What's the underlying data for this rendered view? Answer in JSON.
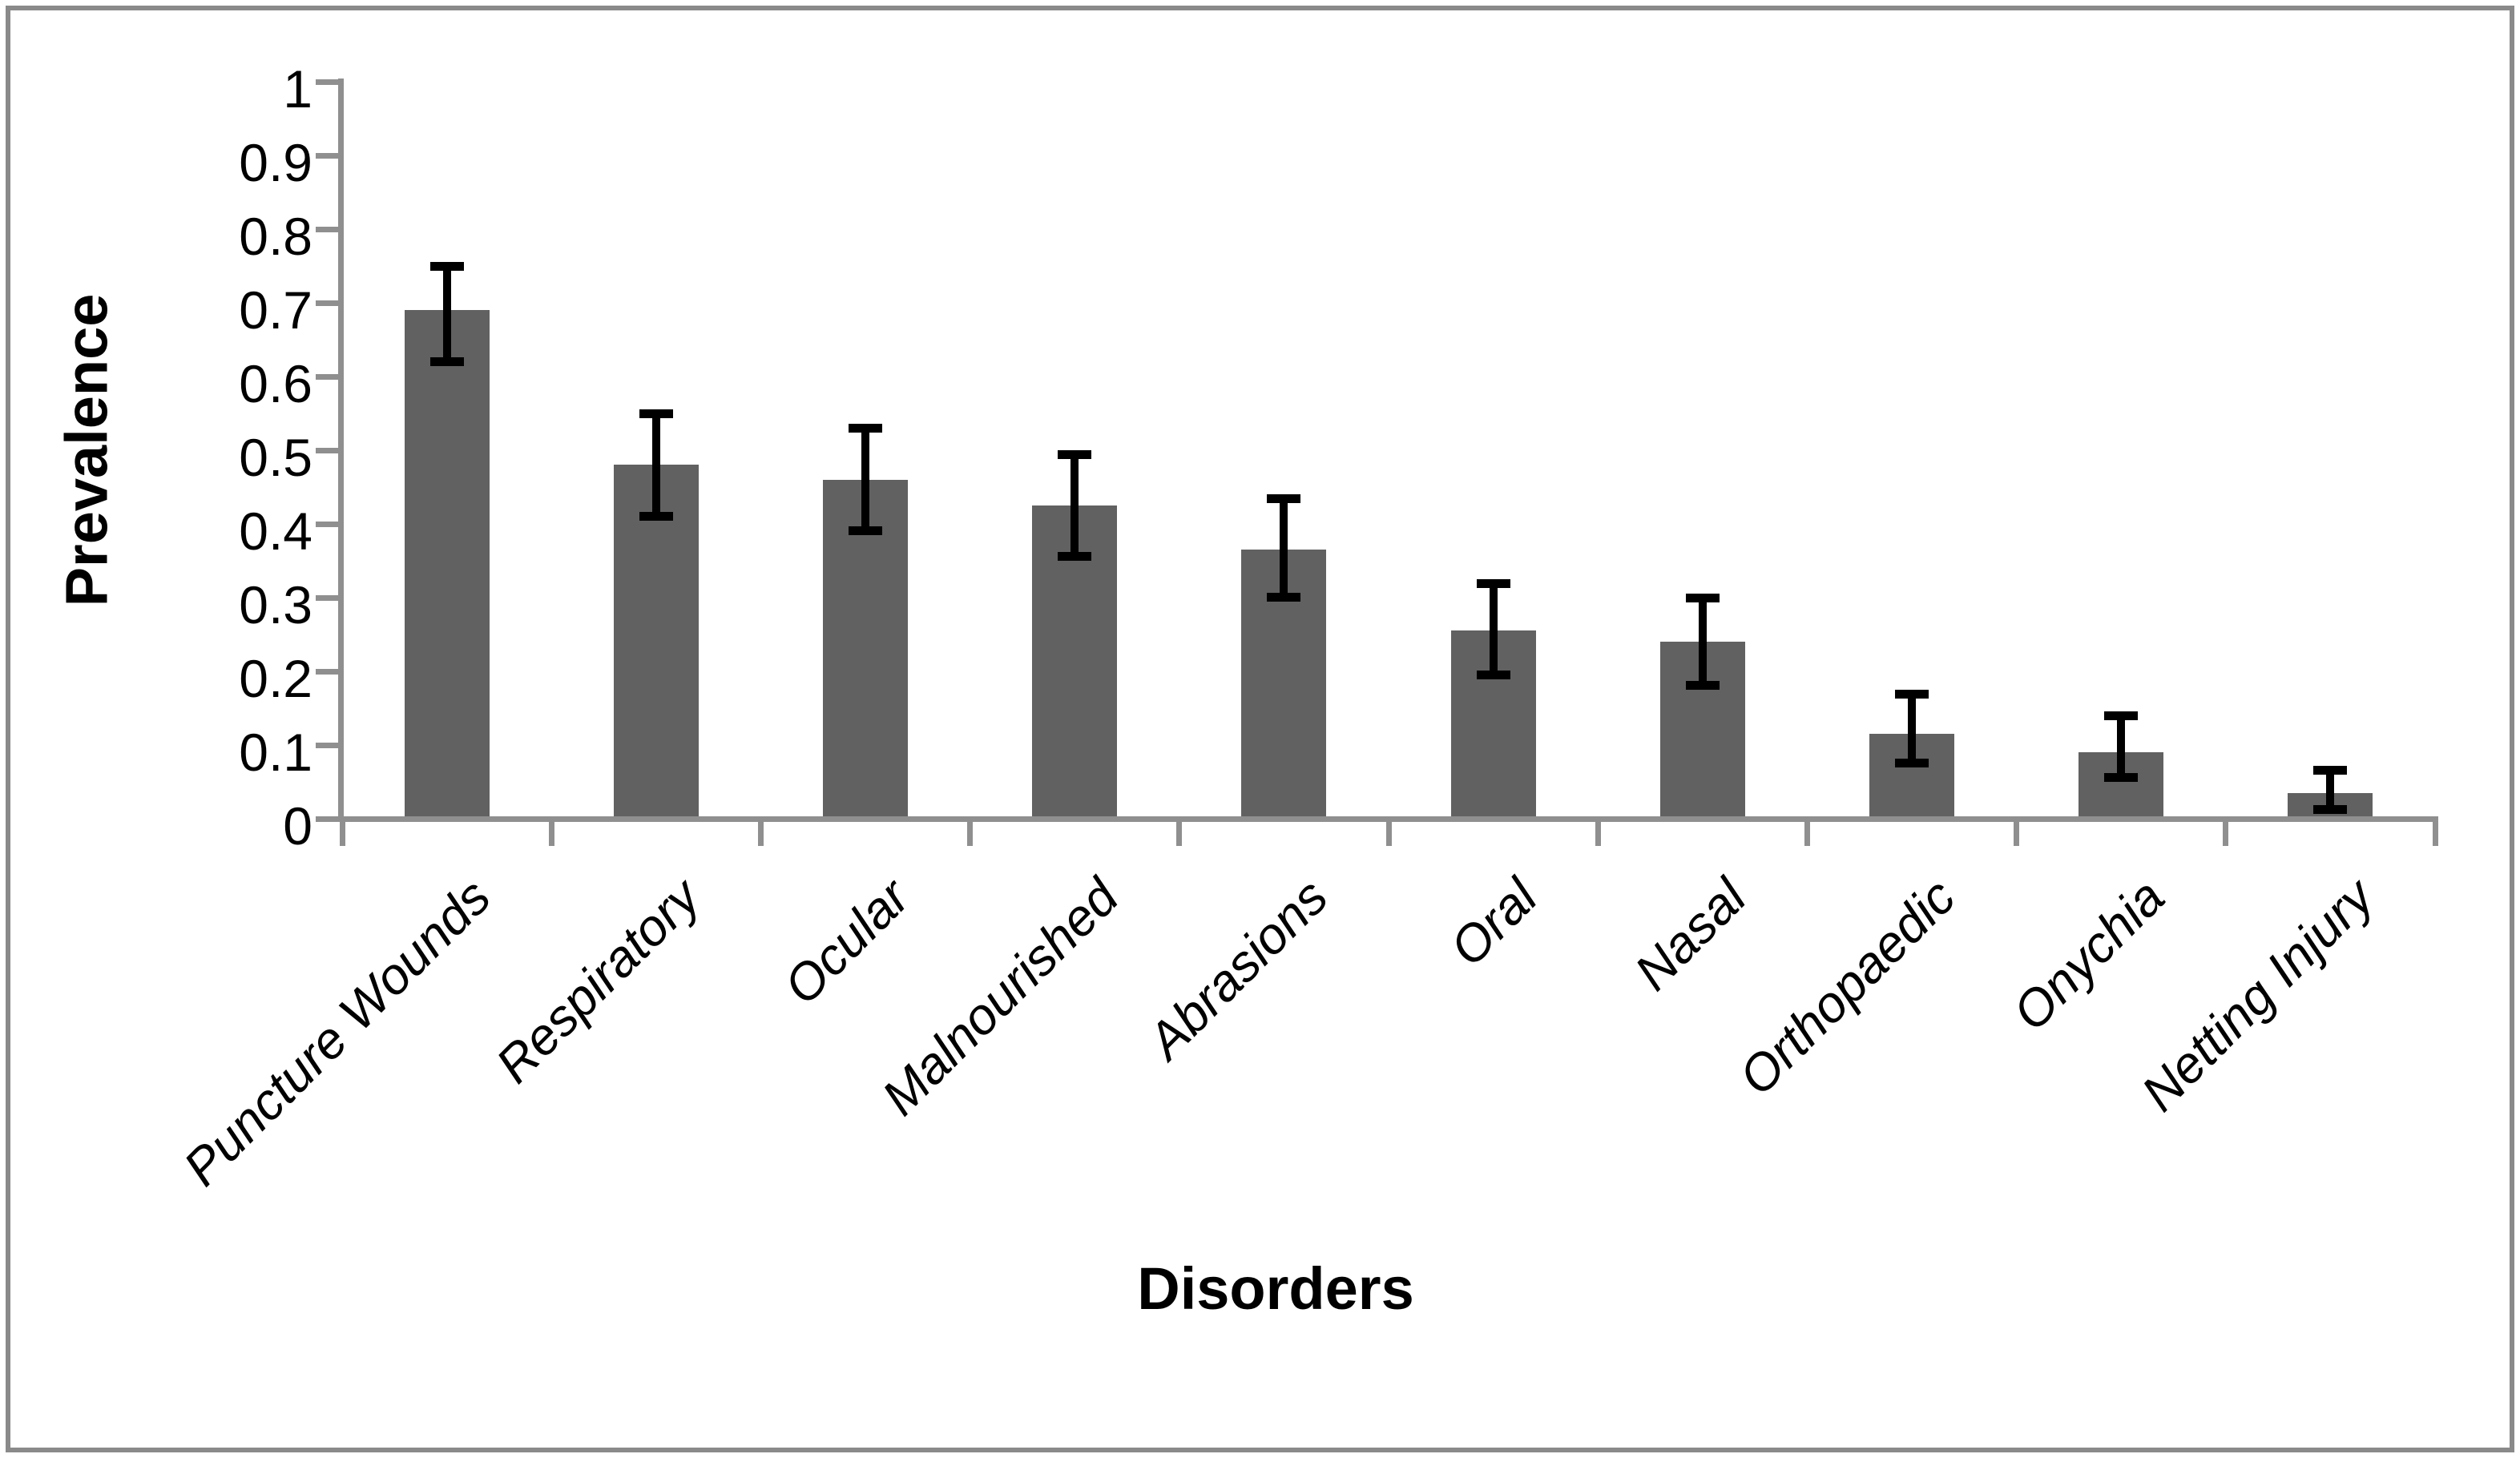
{
  "page": {
    "background": "#ffffff",
    "frame_border_color": "#8a8a8a"
  },
  "chart_data": {
    "type": "bar",
    "title": "",
    "xlabel": "Disorders",
    "ylabel": "Prevalence",
    "categories": [
      "Puncture Wounds",
      "Respiratory",
      "Ocular",
      "Malnourished",
      "Abrasions",
      "Oral",
      "Nasal",
      "Orthopaedic",
      "Onychia",
      "Netting Injury"
    ],
    "values": [
      0.69,
      0.48,
      0.46,
      0.425,
      0.365,
      0.255,
      0.24,
      0.115,
      0.09,
      0.035
    ],
    "error_low": [
      0.62,
      0.41,
      0.39,
      0.355,
      0.3,
      0.195,
      0.18,
      0.075,
      0.055,
      0.012
    ],
    "error_high": [
      0.75,
      0.55,
      0.53,
      0.495,
      0.435,
      0.32,
      0.3,
      0.17,
      0.14,
      0.066
    ],
    "y_tick_labels": [
      "1",
      "0.9",
      "0.8",
      "0.7",
      "0.6",
      "0.5",
      "0.4",
      "0.3",
      "0.2",
      "0.1",
      "0"
    ],
    "y_tick_values": [
      1.0,
      0.9,
      0.8,
      0.7,
      0.6,
      0.5,
      0.4,
      0.3,
      0.2,
      0.1,
      0.0
    ],
    "ylim": [
      0,
      1
    ],
    "grid": false,
    "legend": null,
    "bar_color": "#616161",
    "axis_color": "#8f8f8f",
    "error_bar_color": "#000000",
    "text_color": "#000000"
  }
}
